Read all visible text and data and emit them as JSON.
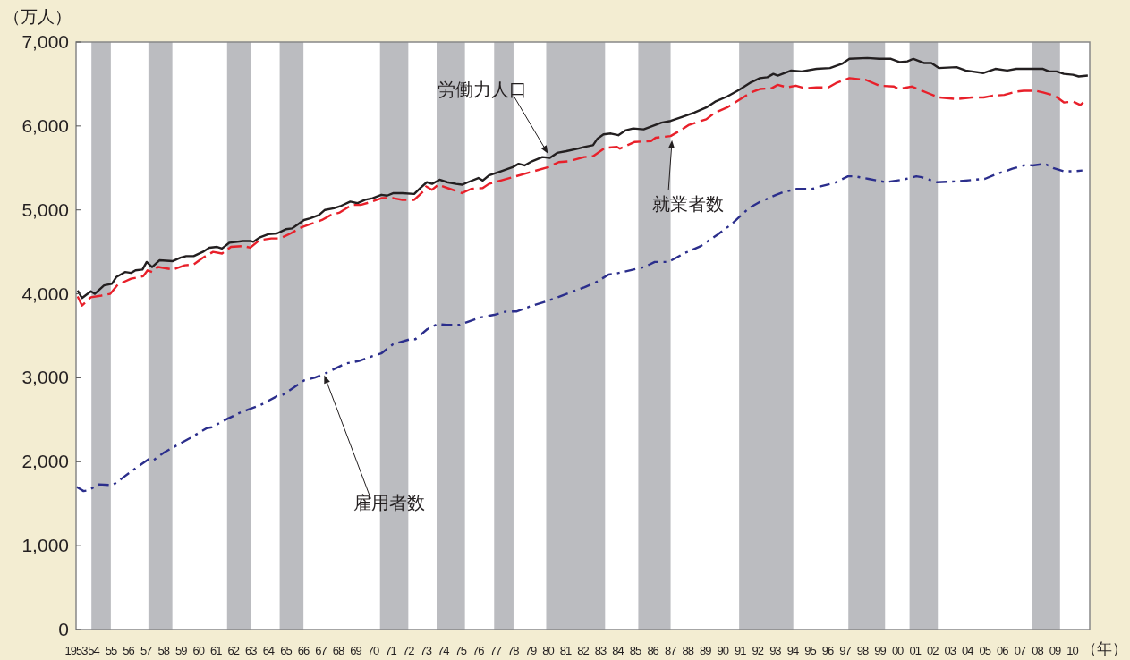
{
  "chart_data": {
    "type": "line",
    "ylabel": "（万人）",
    "xlabel": "（年）",
    "xlim": [
      1953,
      2011
    ],
    "ylim": [
      0,
      7000
    ],
    "yticks": [
      0,
      {
        "value": 1000,
        "label": "1,000"
      },
      {
        "value": 2000,
        "label": "2,000"
      },
      {
        "value": 3000,
        "label": "3,000"
      },
      {
        "value": 4000,
        "label": "4,000"
      },
      {
        "value": 5000,
        "label": "5,000"
      },
      {
        "value": 6000,
        "label": "6,000"
      },
      {
        "value": 7000,
        "label": "7,000"
      }
    ],
    "xticks": [
      1953,
      {
        "value": 1954,
        "label": "54"
      },
      {
        "value": 1955,
        "label": "55"
      },
      {
        "value": 1956,
        "label": "56"
      },
      {
        "value": 1957,
        "label": "57"
      },
      {
        "value": 1958,
        "label": "58"
      },
      {
        "value": 1959,
        "label": "59"
      },
      {
        "value": 1960,
        "label": "60"
      },
      {
        "value": 1961,
        "label": "61"
      },
      {
        "value": 1962,
        "label": "62"
      },
      {
        "value": 1963,
        "label": "63"
      },
      {
        "value": 1964,
        "label": "64"
      },
      {
        "value": 1965,
        "label": "65"
      },
      {
        "value": 1966,
        "label": "66"
      },
      {
        "value": 1967,
        "label": "67"
      },
      {
        "value": 1968,
        "label": "68"
      },
      {
        "value": 1969,
        "label": "69"
      },
      {
        "value": 1970,
        "label": "70"
      },
      {
        "value": 1971,
        "label": "71"
      },
      {
        "value": 1972,
        "label": "72"
      },
      {
        "value": 1973,
        "label": "73"
      },
      {
        "value": 1974,
        "label": "74"
      },
      {
        "value": 1975,
        "label": "75"
      },
      {
        "value": 1976,
        "label": "76"
      },
      {
        "value": 1977,
        "label": "77"
      },
      {
        "value": 1978,
        "label": "78"
      },
      {
        "value": 1979,
        "label": "79"
      },
      {
        "value": 1980,
        "label": "80"
      },
      {
        "value": 1981,
        "label": "81"
      },
      {
        "value": 1982,
        "label": "82"
      },
      {
        "value": 1983,
        "label": "83"
      },
      {
        "value": 1984,
        "label": "84"
      },
      {
        "value": 1985,
        "label": "85"
      },
      {
        "value": 1986,
        "label": "86"
      },
      {
        "value": 1987,
        "label": "87"
      },
      {
        "value": 1988,
        "label": "88"
      },
      {
        "value": 1989,
        "label": "89"
      },
      {
        "value": 1990,
        "label": "90"
      },
      {
        "value": 1991,
        "label": "91"
      },
      {
        "value": 1992,
        "label": "92"
      },
      {
        "value": 1993,
        "label": "93"
      },
      {
        "value": 1994,
        "label": "94"
      },
      {
        "value": 1995,
        "label": "95"
      },
      {
        "value": 1996,
        "label": "96"
      },
      {
        "value": 1997,
        "label": "97"
      },
      {
        "value": 1998,
        "label": "98"
      },
      {
        "value": 1999,
        "label": "99"
      },
      {
        "value": 2000,
        "label": "00"
      },
      {
        "value": 2001,
        "label": "01"
      },
      {
        "value": 2002,
        "label": "02"
      },
      {
        "value": 2003,
        "label": "03"
      },
      {
        "value": 2004,
        "label": "04"
      },
      {
        "value": 2005,
        "label": "05"
      },
      {
        "value": 2006,
        "label": "06"
      },
      {
        "value": 2007,
        "label": "07"
      },
      {
        "value": 2008,
        "label": "08"
      },
      {
        "value": 2009,
        "label": "09"
      },
      {
        "value": 2010,
        "label": "10"
      }
    ],
    "bands": [
      {
        "axis": "x",
        "from": 1953.88,
        "to": 1954.99,
        "color": "#bbbcc0"
      },
      {
        "axis": "x",
        "from": 1957.14,
        "to": 1958.51,
        "color": "#bbbcc0"
      },
      {
        "axis": "x",
        "from": 1961.64,
        "to": 1963.01,
        "color": "#bbbcc0"
      },
      {
        "axis": "x",
        "from": 1964.65,
        "to": 1966.01,
        "color": "#bbbcc0"
      },
      {
        "axis": "x",
        "from": 1970.39,
        "to": 1972.01,
        "color": "#bbbcc0"
      },
      {
        "axis": "x",
        "from": 1973.63,
        "to": 1975.25,
        "color": "#bbbcc0"
      },
      {
        "axis": "x",
        "from": 1976.92,
        "to": 1978.03,
        "color": "#bbbcc0"
      },
      {
        "axis": "x",
        "from": 1979.9,
        "to": 1983.27,
        "color": "#bbbcc0"
      },
      {
        "axis": "x",
        "from": 1985.17,
        "to": 1987.02,
        "color": "#bbbcc0"
      },
      {
        "axis": "x",
        "from": 1990.94,
        "to": 1994.04,
        "color": "#bbbcc0"
      },
      {
        "axis": "x",
        "from": 1997.19,
        "to": 1999.29,
        "color": "#bbbcc0"
      },
      {
        "axis": "x",
        "from": 2000.69,
        "to": 2002.31,
        "color": "#bbbcc0"
      },
      {
        "axis": "x",
        "from": 2007.7,
        "to": 2009.3,
        "color": "#bbbcc0"
      }
    ],
    "series": [
      {
        "color": "#231f20",
        "line_style": "solid",
        "x": [
          1953.09,
          1953.34,
          1953.85,
          1954.07,
          1954.6,
          1955.05,
          1955.3,
          1955.8,
          1956.15,
          1956.4,
          1956.8,
          1957.04,
          1957.35,
          1957.77,
          1958.54,
          1958.97,
          1959.3,
          1959.73,
          1960.25,
          1960.62,
          1961.07,
          1961.35,
          1961.78,
          1962.55,
          1962.97,
          1963.14,
          1963.49,
          1964.0,
          1964.5,
          1965.0,
          1965.36,
          1965.7,
          1966.04,
          1966.39,
          1966.9,
          1967.24,
          1967.75,
          1968.18,
          1968.69,
          1969.11,
          1969.54,
          1969.97,
          1970.47,
          1970.8,
          1971.16,
          1971.67,
          1972.35,
          1972.69,
          1973.07,
          1973.37,
          1973.8,
          1974.23,
          1974.74,
          1975.08,
          1975.42,
          1976.02,
          1976.27,
          1976.62,
          1977.3,
          1977.98,
          1978.32,
          1978.66,
          1979.09,
          1979.68,
          1980.11,
          1980.53,
          1981.05,
          1981.73,
          1982.07,
          1982.58,
          1982.84,
          1983.18,
          1983.6,
          1984.03,
          1984.46,
          1984.88,
          1985.48,
          1985.99,
          1986.5,
          1987.02,
          1987.7,
          1988.38,
          1989.06,
          1989.57,
          1990.25,
          1990.94,
          1991.62,
          1992.13,
          1992.56,
          1992.9,
          1993.15,
          1993.92,
          1994.52,
          1995.37,
          1996.14,
          1996.82,
          1997.25,
          1998.27,
          1998.95,
          1999.63,
          2000.14,
          2000.57,
          2000.91,
          2001.51,
          2001.94,
          2002.36,
          2003.38,
          2003.9,
          2004.92,
          2005.6,
          2006.28,
          2006.8,
          2007.82,
          2008.33,
          2008.67,
          2009.1,
          2009.52,
          2010.04,
          2010.37,
          2010.89
        ],
        "values": [
          4040,
          3950,
          4030,
          4000,
          4100,
          4120,
          4200,
          4260,
          4250,
          4280,
          4290,
          4380,
          4320,
          4400,
          4390,
          4430,
          4450,
          4450,
          4500,
          4550,
          4560,
          4540,
          4610,
          4630,
          4630,
          4620,
          4670,
          4710,
          4720,
          4770,
          4780,
          4830,
          4880,
          4900,
          4940,
          5000,
          5020,
          5050,
          5100,
          5080,
          5120,
          5140,
          5180,
          5170,
          5200,
          5200,
          5190,
          5260,
          5330,
          5310,
          5360,
          5330,
          5310,
          5300,
          5330,
          5380,
          5350,
          5410,
          5460,
          5510,
          5550,
          5530,
          5580,
          5630,
          5620,
          5680,
          5700,
          5730,
          5750,
          5770,
          5850,
          5900,
          5910,
          5890,
          5950,
          5970,
          5960,
          6000,
          6040,
          6060,
          6110,
          6160,
          6220,
          6290,
          6350,
          6430,
          6520,
          6570,
          6580,
          6620,
          6600,
          6660,
          6650,
          6680,
          6690,
          6740,
          6800,
          6810,
          6800,
          6800,
          6760,
          6770,
          6800,
          6750,
          6750,
          6690,
          6700,
          6660,
          6630,
          6680,
          6660,
          6680,
          6680,
          6680,
          6650,
          6650,
          6620,
          6610,
          6590,
          6600
        ]
      },
      {
        "color": "#e8202a",
        "line_style": "dashed",
        "x": [
          1953.09,
          1953.34,
          1953.85,
          1954.45,
          1954.96,
          1955.39,
          1956.15,
          1956.84,
          1957.09,
          1957.35,
          1957.69,
          1958.54,
          1959.22,
          1959.73,
          1960.25,
          1960.84,
          1961.35,
          1961.86,
          1962.55,
          1962.97,
          1963.49,
          1964.17,
          1964.68,
          1965.28,
          1965.87,
          1966.39,
          1967.07,
          1967.58,
          1968.09,
          1968.77,
          1969.28,
          1969.79,
          1970.48,
          1971.16,
          1971.67,
          1972.35,
          1972.86,
          1973.03,
          1973.37,
          1973.72,
          1974.4,
          1975.08,
          1975.6,
          1976.27,
          1976.62,
          1977.3,
          1977.98,
          1978.66,
          1979.17,
          1980.02,
          1980.62,
          1981.22,
          1982.07,
          1982.58,
          1983.27,
          1983.95,
          1984.12,
          1984.97,
          1985.9,
          1986.16,
          1987.02,
          1987.53,
          1988.04,
          1989.06,
          1989.57,
          1990.25,
          1990.94,
          1991.62,
          1992.13,
          1992.81,
          1993.15,
          1993.67,
          1994.19,
          1994.69,
          1995.37,
          1996.05,
          1996.48,
          1997.25,
          1998.18,
          1998.95,
          1999.8,
          2000.06,
          2000.83,
          2001.17,
          2001.76,
          2002.36,
          2003.38,
          2004.24,
          2004.92,
          2005.43,
          2006.11,
          2006.8,
          2007.22,
          2007.9,
          2008.33,
          2009.01,
          2009.52,
          2010.04,
          2010.46,
          2010.63
        ],
        "values": [
          3970,
          3860,
          3960,
          3980,
          4000,
          4110,
          4180,
          4210,
          4280,
          4260,
          4320,
          4290,
          4340,
          4350,
          4430,
          4500,
          4480,
          4560,
          4570,
          4550,
          4640,
          4660,
          4660,
          4720,
          4790,
          4830,
          4880,
          4940,
          4970,
          5060,
          5060,
          5090,
          5140,
          5140,
          5120,
          5120,
          5220,
          5280,
          5240,
          5300,
          5250,
          5200,
          5250,
          5260,
          5310,
          5350,
          5390,
          5430,
          5460,
          5510,
          5570,
          5580,
          5630,
          5640,
          5740,
          5750,
          5730,
          5810,
          5820,
          5860,
          5880,
          5940,
          6010,
          6080,
          6160,
          6220,
          6310,
          6400,
          6440,
          6450,
          6490,
          6460,
          6480,
          6450,
          6460,
          6460,
          6510,
          6570,
          6550,
          6480,
          6470,
          6440,
          6470,
          6440,
          6390,
          6340,
          6320,
          6340,
          6340,
          6360,
          6370,
          6410,
          6420,
          6420,
          6400,
          6360,
          6280,
          6290,
          6250,
          6280
        ]
      },
      {
        "color": "#2b2e8c",
        "line_style": "dashdot",
        "x": [
          1953.04,
          1953.43,
          1953.72,
          1954.31,
          1955.09,
          1955.68,
          1956.46,
          1957.15,
          1957.44,
          1958.03,
          1958.81,
          1959.59,
          1960.48,
          1960.77,
          1961.55,
          1962.34,
          1962.83,
          1963.51,
          1964.49,
          1964.79,
          1966.06,
          1966.64,
          1967.23,
          1968.41,
          1969.19,
          1969.97,
          1970.46,
          1971.14,
          1972.13,
          1972.42,
          1973.1,
          1973.69,
          1974.18,
          1974.96,
          1975.45,
          1976.14,
          1976.92,
          1977.6,
          1978.19,
          1978.97,
          1980.05,
          1980.93,
          1981.72,
          1982.1,
          1982.68,
          1983.47,
          1983.86,
          1985.52,
          1986.11,
          1986.89,
          1987.77,
          1988.75,
          1989.73,
          1990.51,
          1991.49,
          1992.08,
          1993.06,
          1993.45,
          1994.23,
          1995.11,
          1995.6,
          1996.38,
          1997.17,
          1997.56,
          1998.34,
          1999.32,
          2000.3,
          2001.08,
          2001.38,
          2002.26,
          2003.43,
          2004.41,
          2005.0,
          2005.59,
          2006.57,
          2007.35,
          2007.74,
          2008.43,
          2008.91,
          2009.5,
          2010.09,
          2010.58
        ],
        "values": [
          1700,
          1650,
          1660,
          1730,
          1720,
          1810,
          1930,
          2030,
          2020,
          2110,
          2200,
          2290,
          2400,
          2410,
          2500,
          2580,
          2620,
          2670,
          2780,
          2790,
          2970,
          3000,
          3050,
          3170,
          3200,
          3260,
          3290,
          3400,
          3460,
          3460,
          3580,
          3640,
          3630,
          3630,
          3670,
          3720,
          3750,
          3790,
          3790,
          3850,
          3920,
          3990,
          4050,
          4080,
          4130,
          4230,
          4240,
          4320,
          4380,
          4380,
          4480,
          4570,
          4710,
          4830,
          5020,
          5090,
          5180,
          5210,
          5250,
          5250,
          5280,
          5320,
          5400,
          5400,
          5370,
          5330,
          5360,
          5400,
          5390,
          5330,
          5340,
          5360,
          5370,
          5420,
          5490,
          5540,
          5530,
          5550,
          5500,
          5460,
          5460,
          5470
        ]
      }
    ],
    "annotations": [
      {
        "text": "労働力人口",
        "x": 1980.0,
        "y": 5670
      },
      {
        "text": "就業者数",
        "x": 1987.1,
        "y": 5830
      },
      {
        "text": "雇用者数",
        "x": 1967.2,
        "y": 3030
      }
    ]
  }
}
